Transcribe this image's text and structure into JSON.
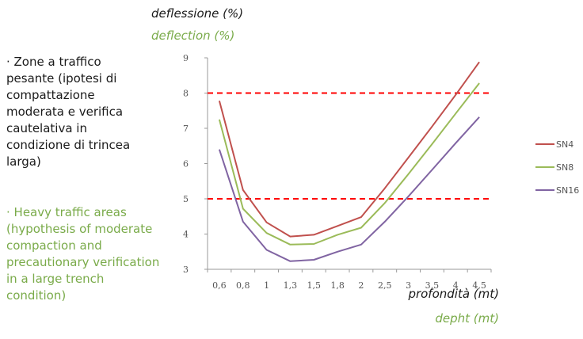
{
  "description_it": "· Zone a traffico pesante (ipotesi di compattazione moderata e verifica cautelativa in condizione di trincea larga)",
  "description_en": "· Heavy traffic areas (hypothesis of moderate compaction and precautionary verification in a large trench condition)",
  "chart_data": {
    "type": "line",
    "ylabel": "deflessione (%)",
    "ylabel_en": "deflection (%)",
    "xlabel": "profondità (mt)",
    "xlabel_en": "depht (mt)",
    "categories": [
      "0,6",
      "0,8",
      "1",
      "1,3",
      "1,5",
      "1,8",
      "2",
      "2,5",
      "3",
      "3,5",
      "4",
      "4,5"
    ],
    "ylim": [
      3,
      9
    ],
    "yticks": [
      "3",
      "4",
      "5",
      "6",
      "7",
      "8",
      "9"
    ],
    "grid": false,
    "legend_position": "right",
    "series": [
      {
        "name": "SN4",
        "color": "#c0504d",
        "values": [
          7.78,
          5.25,
          4.33,
          3.93,
          3.98,
          4.23,
          4.48,
          5.3,
          6.17,
          7.05,
          7.95,
          8.88
        ]
      },
      {
        "name": "SN8",
        "color": "#9bbb59",
        "values": [
          7.25,
          4.72,
          4.03,
          3.7,
          3.72,
          3.98,
          4.18,
          4.88,
          5.7,
          6.55,
          7.42,
          8.28
        ]
      },
      {
        "name": "SN16",
        "color": "#8064a2",
        "values": [
          6.4,
          4.35,
          3.55,
          3.23,
          3.27,
          3.5,
          3.7,
          4.35,
          5.07,
          5.82,
          6.58,
          7.32
        ]
      }
    ],
    "reference_lines": [
      {
        "value": 8,
        "color": "#ff0000",
        "style": "dashed"
      },
      {
        "value": 5,
        "color": "#ff0000",
        "style": "dashed"
      }
    ]
  }
}
